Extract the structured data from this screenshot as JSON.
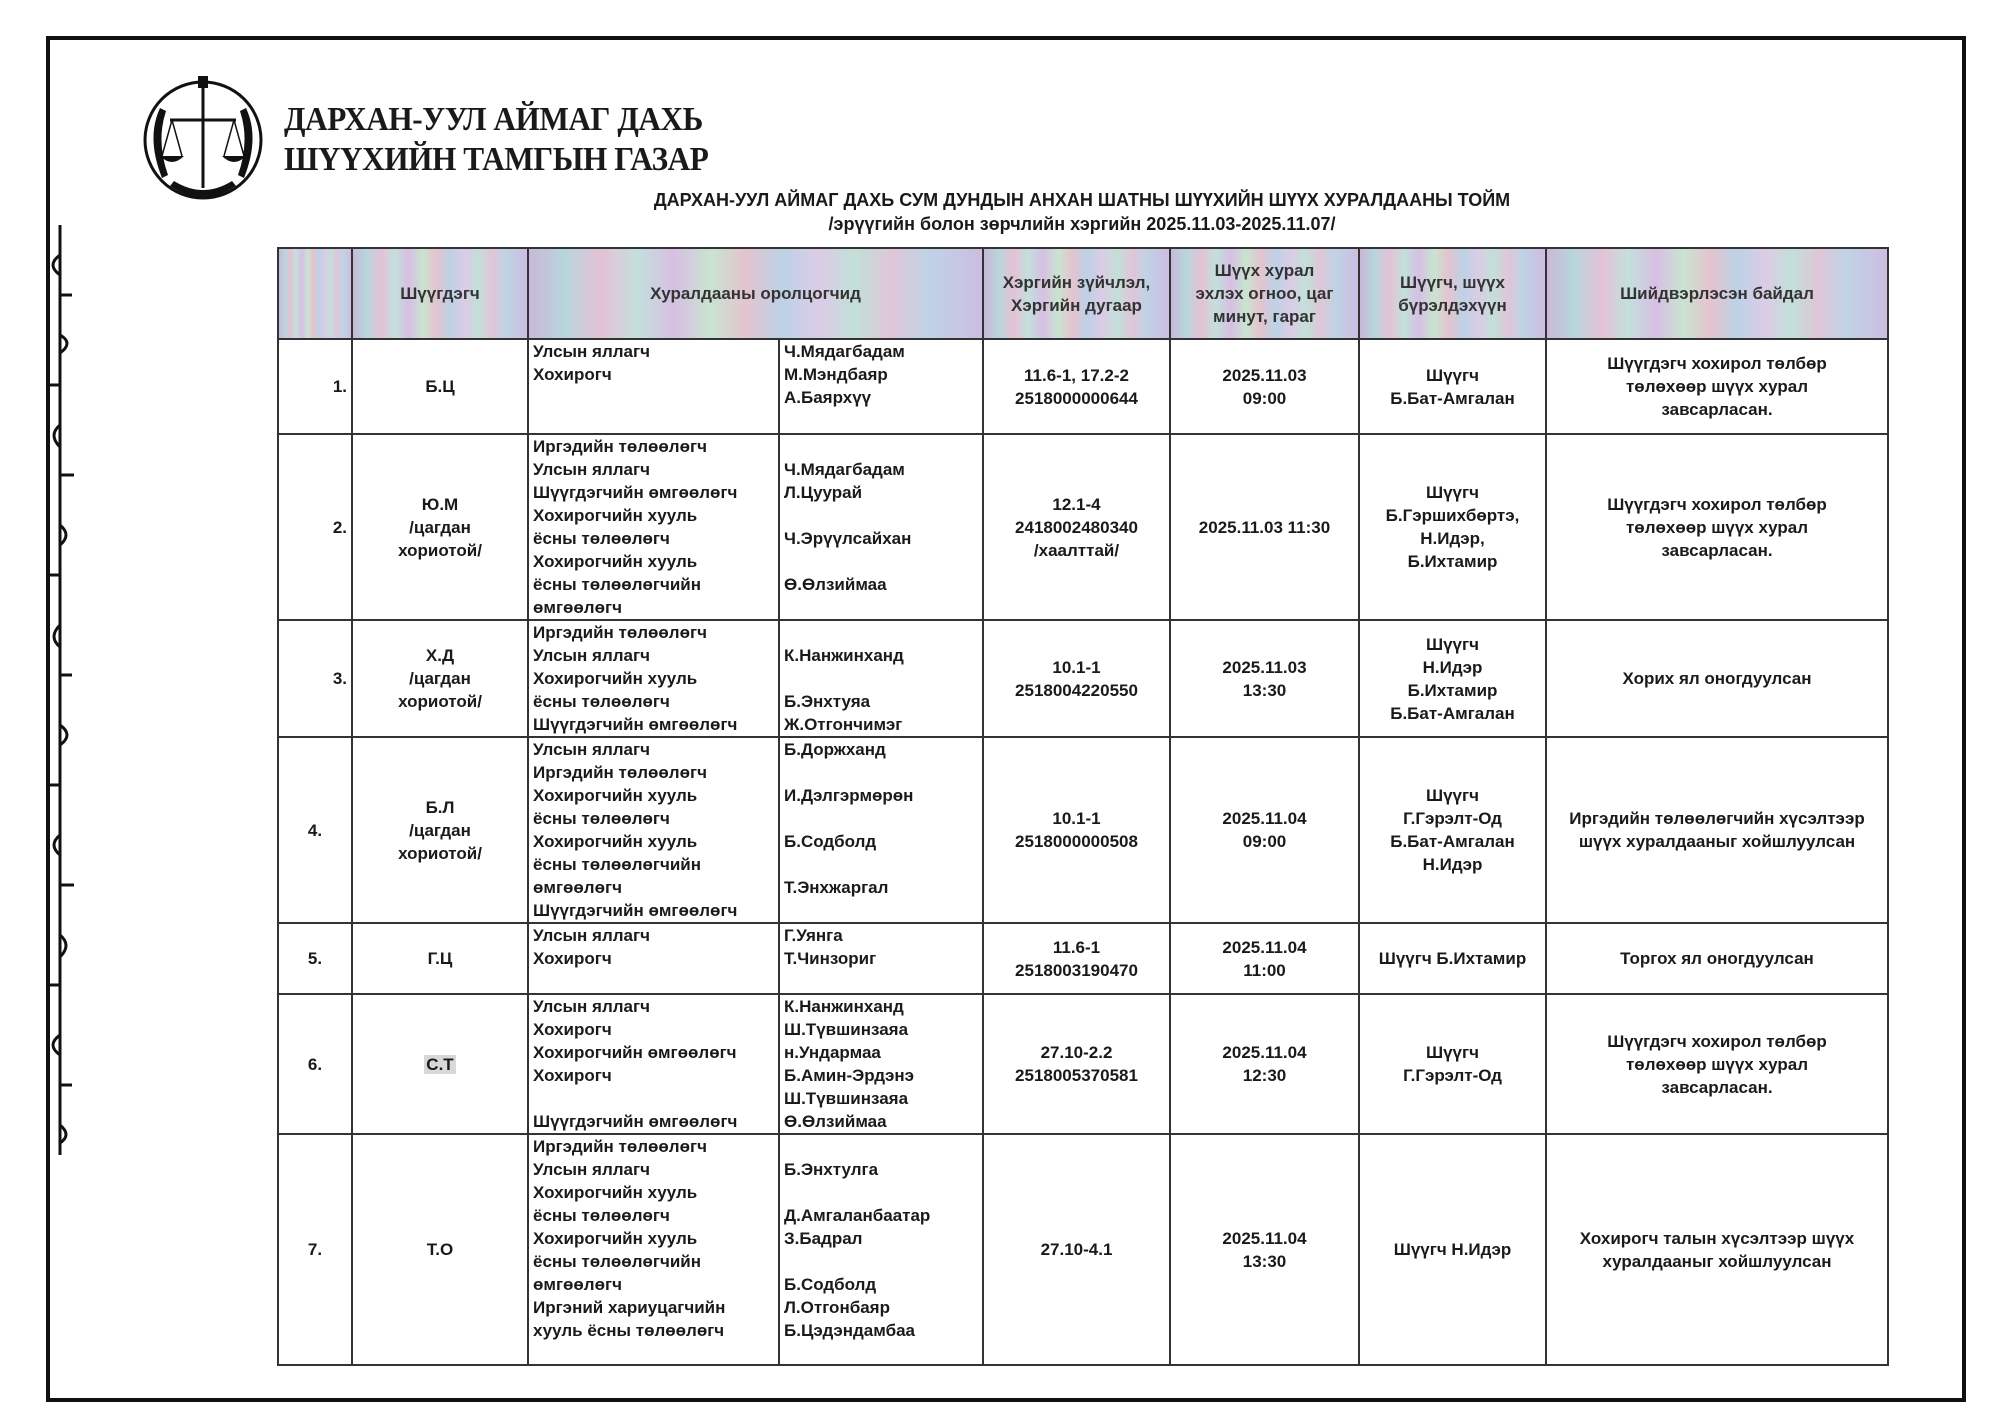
{
  "header": {
    "org_line1": "ДАРХАН-УУЛ АЙМАГ ДАХЬ",
    "org_line2": "ШҮҮХИЙН ТАМГЫН ГАЗАР",
    "title": "ДАРХАН-УУЛ АЙМАГ ДАХЬ СУМ ДУНДЫН АНХАН ШАТНЫ ШҮҮХИЙН ШҮҮХ ХУРАЛДААНЫ ТОЙМ",
    "subtitle": "/эрүүгийн болон зөрчлийн хэргийн 2025.11.03-2025.11.07/"
  },
  "logo_icon": "court-emblem-scales-wreath-icon",
  "table": {
    "columns": [
      "",
      "Шүүгдэгч",
      "Хуралдааны оролцогчид",
      "Хэргийн зүйчлэл,\nХэргийн дугаар",
      "Шүүх хурал\nэхлэх огноо, цаг\nминут, гараг",
      "Шүүгч, шүүх\nбүрэлдэхүүн",
      "Шийдвэрлэсэн байдал"
    ],
    "rows": [
      {
        "num": "1.",
        "defendant": "Б.Ц",
        "roles": "Улсын яллагч\nХохирогч",
        "names": "Ч.Мядагбадам\nМ.Мэндбаяр\nА.Баярхүү",
        "case": "11.6-1, 17.2-2\n2518000000644",
        "time": "2025.11.03\n09:00",
        "judges": "Шүүгч\nБ.Бат-Амгалан",
        "decision": "Шүүгдэгч хохирол төлбөр\nтөлөхөөр шүүх хурал\nзавсарласан."
      },
      {
        "num": "2.",
        "defendant": "Ю.М\n/цагдан\nхориотой/",
        "roles": "Иргэдийн төлөөлөгч\nУлсын яллагч\nШүүгдэгчийн өмгөөлөгч\nХохирогчийн хууль\nёсны төлөөлөгч\nХохирогчийн хууль\nёсны төлөөлөгчийн\nөмгөөлөгч",
        "names": "\nЧ.Мядагбадам\nЛ.Цуурай\n\nЧ.Эрүүлсайхан\n\nӨ.Өлзиймаа",
        "case": "12.1-4\n2418002480340\n/хаалттай/",
        "time": "2025.11.03 11:30",
        "judges": "Шүүгч\nБ.Гэршихбөртэ,\nН.Идэр,\nБ.Ихтамир",
        "decision": "Шүүгдэгч хохирол төлбөр\nтөлөхөөр шүүх хурал\nзавсарласан."
      },
      {
        "num": "3.",
        "defendant": "Х.Д\n/цагдан\nхориотой/",
        "roles": "Иргэдийн төлөөлөгч\nУлсын яллагч\nХохирогчийн хууль\nёсны төлөөлөгч\nШүүгдэгчийн өмгөөлөгч",
        "names": "\nК.Нанжинханд\n\nБ.Энхтуяа\nЖ.Отгончимэг",
        "case": "10.1-1\n2518004220550",
        "time": "2025.11.03\n13:30",
        "judges": "Шүүгч\nН.Идэр\nБ.Ихтамир\nБ.Бат-Амгалан",
        "decision": "Хорих ял оногдуулсан"
      },
      {
        "num": "4.",
        "defendant": "Б.Л\n/цагдан\nхориотой/",
        "roles": "Улсын яллагч\nИргэдийн төлөөлөгч\nХохирогчийн хууль\nёсны төлөөлөгч\nХохирогчийн хууль\nёсны төлөөлөгчийн\nөмгөөлөгч\nШүүгдэгчийн өмгөөлөгч",
        "names": "Б.Доржханд\n\nИ.Дэлгэрмөрөн\n\nБ.Содболд\n\nТ.Энхжаргал",
        "case": "10.1-1\n2518000000508",
        "time": "2025.11.04\n09:00",
        "judges": "Шүүгч\nГ.Гэрэлт-Од\nБ.Бат-Амгалан\nН.Идэр",
        "decision": "Иргэдийн төлөөлөгчийн хүсэлтээр\nшүүх хуралдааныг хойшлуулсан"
      },
      {
        "num": "5.",
        "defendant": "Г.Ц",
        "roles": "Улсын яллагч\nХохирогч",
        "names": "Г.Уянга\nТ.Чинзориг",
        "case": "11.6-1\n2518003190470",
        "time": "2025.11.04\n11:00",
        "judges": "Шүүгч Б.Ихтамир",
        "decision": "Торгох ял оногдуулсан"
      },
      {
        "num": "6.",
        "defendant": "С.Т",
        "roles": "Улсын яллагч\nХохирогч\nХохирогчийн өмгөөлөгч\nХохирогч\n\nШүүгдэгчийн өмгөөлөгч",
        "names": "К.Нанжинханд\nШ.Түвшинзаяа\nн.Ундармаа\nБ.Амин-Эрдэнэ\nШ.Түвшинзаяа\nӨ.Өлзиймаа",
        "case": "27.10-2.2\n2518005370581",
        "time": "2025.11.04\n12:30",
        "judges": "Шүүгч\nГ.Гэрэлт-Од",
        "decision": "Шүүгдэгч хохирол төлбөр\nтөлөхөөр шүүх хурал\nзавсарласан."
      },
      {
        "num": "7.",
        "defendant": "Т.О",
        "roles": "Иргэдийн төлөөлөгч\nУлсын яллагч\nХохирогчийн хууль\nёсны төлөөлөгч\nХохирогчийн хууль\nёсны төлөөлөгчийн\nөмгөөлөгч\nИргэний хариуцагчийн\nхууль ёсны төлөөлөгч",
        "names": "\nБ.Энхтулга\n\nД.Амгаланбаатар\nЗ.Бадрал\n\nБ.Содболд\nЛ.Отгонбаяр\nБ.Цэдэндамбаа",
        "case": "27.10-4.1",
        "time": "2025.11.04\n13:30",
        "judges": "Шүүгч Н.Идэр",
        "decision": "Хохирогч талын хүсэлтээр шүүх\nхуралдааныг хойшлуулсан"
      }
    ]
  },
  "colors": {
    "text": "#1a1a1a",
    "border": "#333333",
    "highlight": "#d8d8d8"
  }
}
